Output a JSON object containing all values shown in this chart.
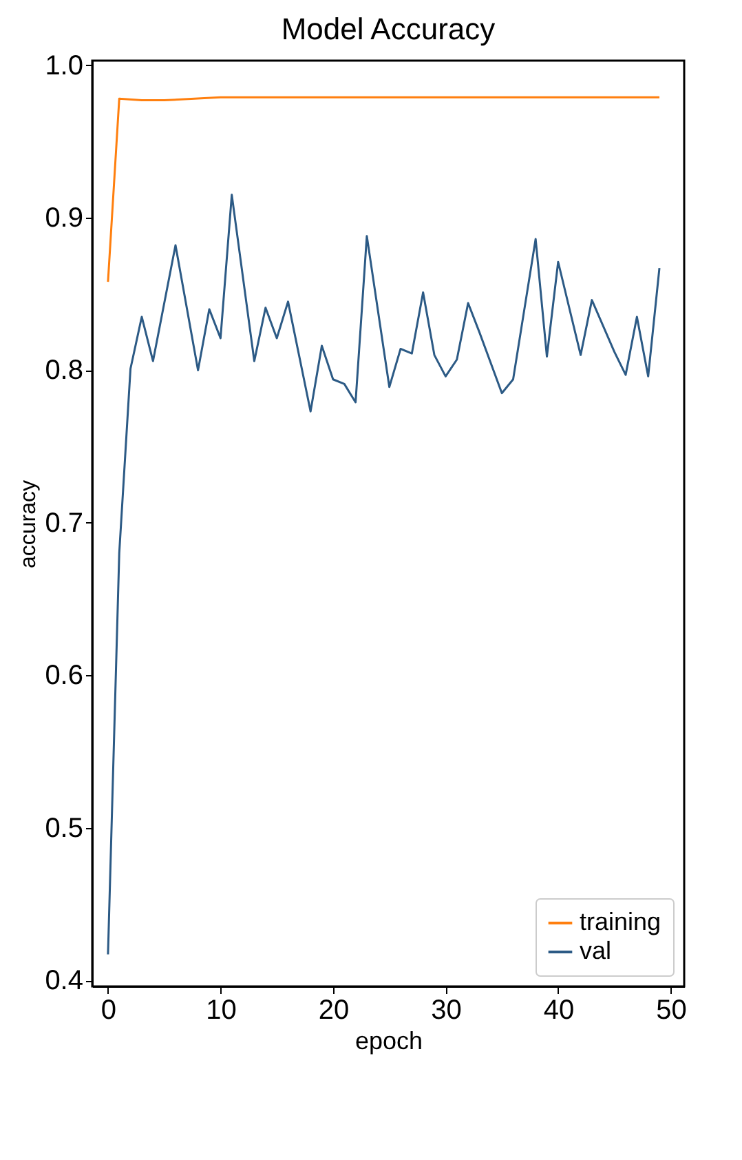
{
  "chart_data": {
    "type": "line",
    "title": "Model Accuracy",
    "xlabel": "epoch",
    "ylabel": "accuracy",
    "xlim": [
      -1.4,
      51.2
    ],
    "xticks": [
      0,
      10,
      20,
      30,
      40,
      50
    ],
    "ylim": [
      0.396,
      1.003
    ],
    "yticks": [
      0.4,
      0.5,
      0.6,
      0.7,
      0.8,
      0.9,
      {
        "value": 1,
        "label": "1.0"
      }
    ],
    "grid": false,
    "legend": "bottom right",
    "marker": "none",
    "line_style": "solid",
    "series": [
      {
        "name": "training",
        "color": "#ff7f0e",
        "x": [
          0,
          1,
          3,
          5,
          10,
          20,
          30,
          40,
          49
        ],
        "values": [
          0.858,
          0.978,
          0.977,
          0.977,
          0.979,
          0.979,
          0.979,
          0.979,
          0.979
        ]
      },
      {
        "name": "val",
        "color": "#2c5a85",
        "x": [
          0,
          1,
          2,
          3,
          4,
          6,
          8,
          9,
          10,
          11,
          13,
          14,
          15,
          16,
          18,
          19,
          20,
          21,
          22,
          23,
          25,
          26,
          27,
          28,
          29,
          30,
          31,
          32,
          33,
          35,
          36,
          38,
          39,
          40,
          42,
          43,
          45,
          46,
          47,
          48,
          49
        ],
        "values": [
          0.417,
          0.68,
          0.801,
          0.835,
          0.806,
          0.882,
          0.8,
          0.84,
          0.821,
          0.915,
          0.806,
          0.841,
          0.821,
          0.845,
          0.773,
          0.816,
          0.794,
          0.791,
          0.779,
          0.888,
          0.789,
          0.814,
          0.811,
          0.851,
          0.81,
          0.796,
          0.807,
          0.844,
          0.825,
          0.785,
          0.794,
          0.886,
          0.809,
          0.871,
          0.81,
          0.846,
          0.812,
          0.797,
          0.835,
          0.796,
          0.867
        ]
      }
    ]
  }
}
